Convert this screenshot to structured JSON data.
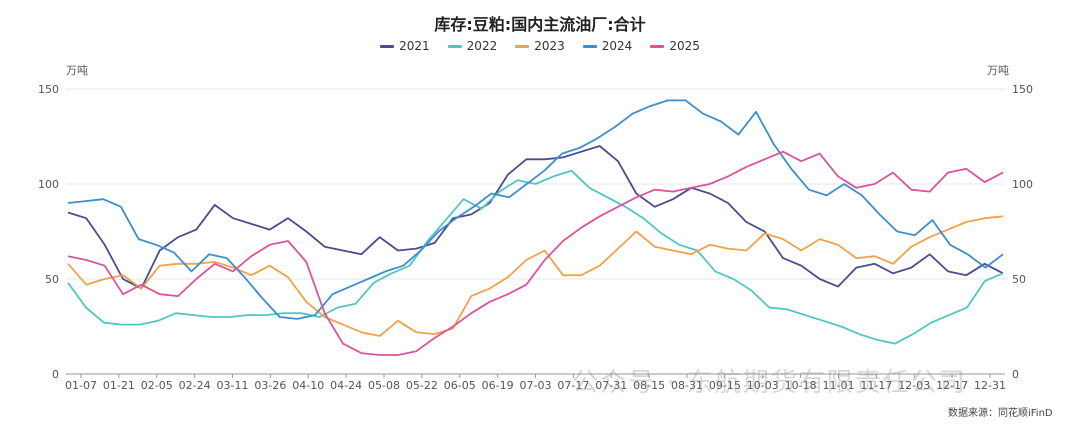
{
  "chart_data": {
    "type": "line",
    "title": "库存:豆粕:国内主流油厂:合计",
    "unit_left": "万吨",
    "unit_right": "万吨",
    "ylim": [
      0,
      150
    ],
    "yticks": [
      0,
      50,
      100,
      150
    ],
    "x_tick_labels": [
      "01-07",
      "01-21",
      "02-05",
      "02-24",
      "03-11",
      "03-26",
      "04-10",
      "04-24",
      "05-08",
      "05-22",
      "06-05",
      "06-19",
      "07-03",
      "07-17",
      "07-31",
      "08-15",
      "08-31",
      "09-15",
      "10-03",
      "10-18",
      "11-01",
      "11-17",
      "12-03",
      "12-17",
      "12-31"
    ],
    "grid": true,
    "legend_position": "top",
    "series": [
      {
        "name": "2021",
        "color": "#4b4b8f",
        "values": [
          85,
          82,
          68,
          50,
          45,
          65,
          72,
          76,
          89,
          82,
          79,
          76,
          82,
          75,
          67,
          65,
          63,
          72,
          65,
          66,
          69,
          82,
          84,
          90,
          105,
          113,
          113,
          114,
          117,
          120,
          112,
          95,
          88,
          92,
          98,
          95,
          90,
          80,
          75,
          61,
          57,
          50,
          46,
          56,
          58,
          53,
          56,
          63,
          54,
          52,
          58,
          53
        ]
      },
      {
        "name": "2022",
        "color": "#4fc7c1",
        "values": [
          48,
          35,
          27,
          26,
          26,
          28,
          32,
          31,
          30,
          30,
          31,
          31,
          32,
          32,
          30,
          35,
          37,
          48,
          53,
          57,
          70,
          81,
          92,
          87,
          96,
          102,
          100,
          104,
          107,
          98,
          93,
          88,
          82,
          74,
          68,
          65,
          54,
          50,
          44,
          35,
          34,
          31,
          28,
          25,
          21,
          18,
          16,
          21,
          27,
          31,
          35,
          49,
          53
        ]
      },
      {
        "name": "2023",
        "color": "#f0a24a",
        "values": [
          58,
          47,
          50,
          52,
          45,
          57,
          58,
          58,
          59,
          56,
          52,
          57,
          51,
          38,
          30,
          26,
          22,
          20,
          28,
          22,
          21,
          24,
          41,
          45,
          51,
          60,
          65,
          52,
          52,
          57,
          66,
          75,
          67,
          65,
          63,
          68,
          66,
          65,
          74,
          71,
          65,
          71,
          68,
          61,
          62,
          58,
          67,
          72,
          76,
          80,
          82,
          83
        ]
      },
      {
        "name": "2024",
        "color": "#3d8fca",
        "values": [
          90,
          91,
          92,
          88,
          71,
          68,
          64,
          54,
          63,
          61,
          51,
          40,
          30,
          29,
          31,
          42,
          46,
          50,
          54,
          57,
          65,
          75,
          82,
          88,
          95,
          93,
          100,
          107,
          116,
          119,
          124,
          130,
          137,
          141,
          144,
          144,
          137,
          133,
          126,
          138,
          121,
          108,
          97,
          94,
          100,
          94,
          84,
          75,
          73,
          81,
          68,
          63,
          56,
          63
        ]
      },
      {
        "name": "2025",
        "color": "#d9559b",
        "values": [
          62,
          60,
          57,
          42,
          47,
          42,
          41,
          50,
          58,
          54,
          62,
          68,
          70,
          59,
          32,
          16,
          11,
          10,
          10,
          12,
          19,
          25,
          32,
          38,
          42,
          47,
          60,
          70,
          77,
          83,
          88,
          93,
          97,
          96,
          98,
          100,
          104,
          109,
          113,
          117,
          112,
          116,
          104,
          98,
          100,
          106,
          97,
          96,
          106,
          108,
          101,
          106
        ]
      }
    ]
  },
  "watermark": "公众号 · 东航期货有限责任公司",
  "source": "数据来源：同花顺iFinD"
}
